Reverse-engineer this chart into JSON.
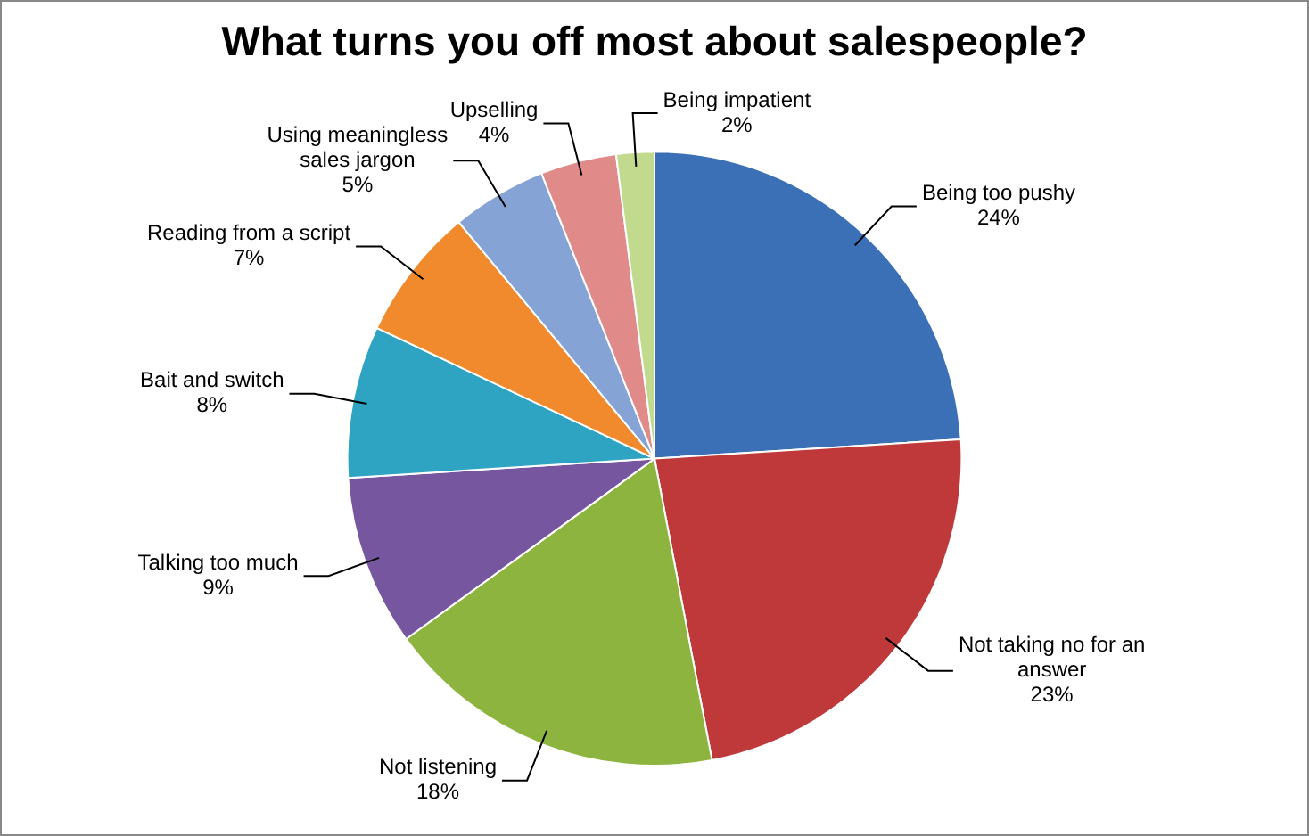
{
  "chart_data": {
    "type": "pie",
    "title": "What turns you off most about salespeople?",
    "categories": [
      "Being too pushy",
      "Not taking no for an answer",
      "Not listening",
      "Talking too much",
      "Bait and switch",
      "Reading from a script",
      "Using meaningless sales jargon",
      "Upselling",
      "Being impatient"
    ],
    "values": [
      24,
      23,
      18,
      9,
      8,
      7,
      5,
      4,
      2
    ],
    "value_labels": [
      "24%",
      "23%",
      "18%",
      "9%",
      "8%",
      "7%",
      "5%",
      "4%",
      "2%"
    ],
    "colors": [
      "#3b6fb6",
      "#c0393a",
      "#8db43f",
      "#7756a0",
      "#2fa3c2",
      "#f08a2c",
      "#86a3d6",
      "#e08a8a",
      "#c2da8e"
    ],
    "legend": false
  }
}
